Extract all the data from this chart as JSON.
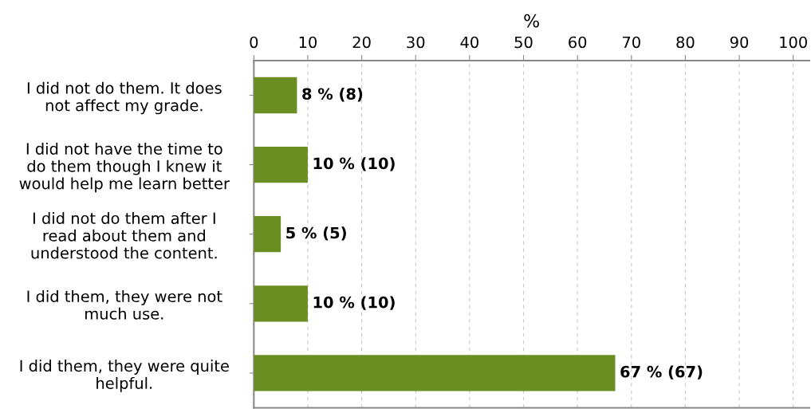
{
  "chart_data": {
    "type": "bar",
    "orientation": "horizontal",
    "xlabel": "%",
    "categories": [
      "I did not do them. It does\nnot affect my grade.",
      "I did not have the time to\ndo them though I knew it\nwould help me learn better",
      "I did not do them after I\nread about them and\nunderstood the content.",
      "I did them, they were not\nmuch use.",
      "I did them, they were quite\nhelpful."
    ],
    "values": [
      8,
      10,
      5,
      10,
      67
    ],
    "value_labels": [
      "8 % (8)",
      "10 % (10)",
      "5 % (5)",
      "10 % (10)",
      "67 % (67)"
    ],
    "color": "#6b8e23",
    "xlim": [
      0,
      103
    ],
    "xticks": [
      0,
      10,
      20,
      30,
      40,
      50,
      60,
      70,
      80,
      90,
      100
    ],
    "grid": "x",
    "legend": false
  }
}
